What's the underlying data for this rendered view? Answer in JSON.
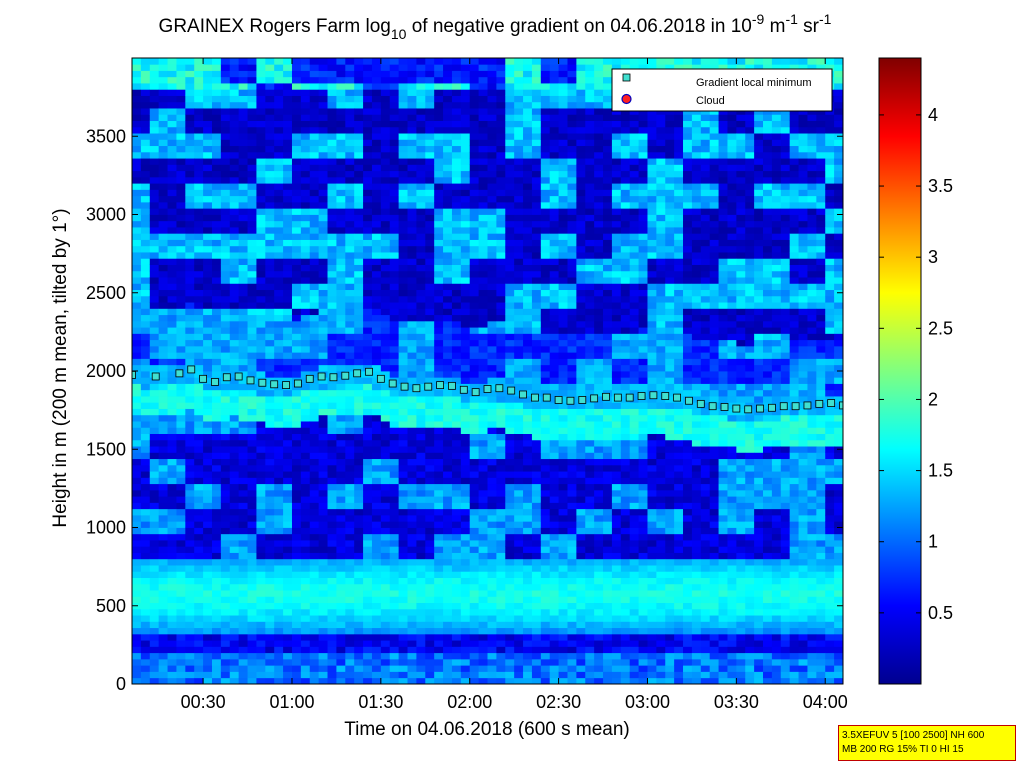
{
  "chart_data": {
    "type": "heatmap",
    "title_parts": {
      "prefix": "GRAINEX Rogers Farm log",
      "log_base": "10",
      "middle": " of negative gradient on 04.06.2018 in 10",
      "exp1": "-9",
      "unit_m": " m",
      "exp2": "-1",
      "unit_sr": " sr",
      "exp3": "-1"
    },
    "xlabel": "Time on 04.06.2018 (600 s mean)",
    "ylabel": "Height in m (200 m mean, tilted by 1°)",
    "x_ticks": [
      {
        "minutes": 30,
        "label": "00:30"
      },
      {
        "minutes": 60,
        "label": "01:00"
      },
      {
        "minutes": 90,
        "label": "01:30"
      },
      {
        "minutes": 120,
        "label": "02:00"
      },
      {
        "minutes": 150,
        "label": "02:30"
      },
      {
        "minutes": 180,
        "label": "03:00"
      },
      {
        "minutes": 210,
        "label": "03:30"
      },
      {
        "minutes": 240,
        "label": "04:00"
      }
    ],
    "xlim_minutes": [
      6,
      246
    ],
    "y_ticks": [
      0,
      500,
      1000,
      1500,
      2000,
      2500,
      3000,
      3500
    ],
    "ylim": [
      0,
      4000
    ],
    "colorbar": {
      "colormap": "jet",
      "range": [
        0,
        4.4
      ],
      "ticks": [
        "0.5",
        "1",
        "1.5",
        "2",
        "2.5",
        "3",
        "3.5",
        "4"
      ]
    },
    "legend": {
      "placement": "top-right",
      "entries": [
        {
          "label": "Gradient local minimum",
          "marker": "square",
          "color": "#40e0d0"
        },
        {
          "label": "Cloud",
          "marker": "circle",
          "color": "#ff2020"
        }
      ]
    },
    "gradient_local_minimum": {
      "time_minutes": [
        6,
        14,
        22,
        26,
        30,
        34,
        38,
        42,
        46,
        50,
        54,
        58,
        62,
        66,
        70,
        74,
        78,
        82,
        86,
        90,
        94,
        98,
        102,
        106,
        110,
        114,
        118,
        122,
        126,
        130,
        134,
        138,
        142,
        146,
        150,
        154,
        158,
        162,
        166,
        170,
        174,
        178,
        182,
        186,
        190,
        194,
        198,
        202,
        206,
        210,
        214,
        218,
        222,
        226,
        230,
        234,
        238,
        242,
        246
      ],
      "height_m": [
        1975,
        1965,
        1985,
        2010,
        1950,
        1930,
        1960,
        1965,
        1940,
        1925,
        1915,
        1910,
        1920,
        1950,
        1965,
        1960,
        1970,
        1985,
        1995,
        1950,
        1920,
        1900,
        1890,
        1900,
        1910,
        1905,
        1880,
        1865,
        1885,
        1890,
        1875,
        1850,
        1830,
        1830,
        1815,
        1810,
        1815,
        1825,
        1835,
        1830,
        1830,
        1840,
        1845,
        1840,
        1830,
        1810,
        1790,
        1775,
        1770,
        1760,
        1755,
        1760,
        1765,
        1775,
        1775,
        1780,
        1790,
        1795,
        1780
      ]
    },
    "grid": false
  },
  "info_box": {
    "line1": "3.5XEFUV 5 [100 2500] NH 600",
    "line2": "MB 200 RG 15% TI 0 HI 15"
  },
  "colors": {
    "background": "#ffffff",
    "stamp_fill": "#ffff00",
    "stamp_border": "#c00000"
  }
}
